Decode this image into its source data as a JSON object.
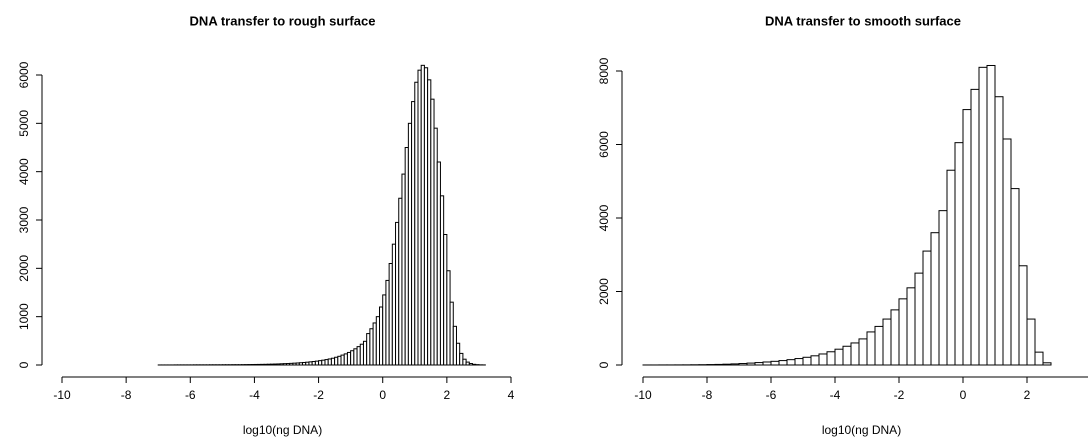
{
  "chart_data": [
    {
      "type": "histogram",
      "title": "DNA transfer to rough surface",
      "x_label": "log10(ng DNA)",
      "bins": [
        -7,
        -6.9,
        -6.8,
        -6.7,
        -6.6,
        -6.5,
        -6.4,
        -6.3,
        -6.2,
        -6.1,
        -6,
        -5.9,
        -5.8,
        -5.7,
        -5.6,
        -5.5,
        -5.4,
        -5.3,
        -5.2,
        -5.1,
        -5,
        -4.9,
        -4.8,
        -4.7,
        -4.6,
        -4.5,
        -4.4,
        -4.3,
        -4.2,
        -4.1,
        -4,
        -3.9,
        -3.8,
        -3.7,
        -3.6,
        -3.5,
        -3.4,
        -3.3,
        -3.2,
        -3.1,
        -3,
        -2.9,
        -2.8,
        -2.7,
        -2.6,
        -2.5,
        -2.4,
        -2.3,
        -2.2,
        -2.1,
        -2,
        -1.9,
        -1.8,
        -1.7,
        -1.6,
        -1.5,
        -1.4,
        -1.3,
        -1.2,
        -1.1,
        -1,
        -0.9,
        -0.8,
        -0.7,
        -0.6,
        -0.5,
        -0.4,
        -0.3,
        -0.2,
        -0.1,
        0,
        0.1,
        0.2,
        0.3,
        0.4,
        0.5,
        0.6,
        0.7,
        0.8,
        0.9,
        1,
        1.1,
        1.2,
        1.3,
        1.4,
        1.5,
        1.6,
        1.7,
        1.8,
        1.9,
        2,
        2.1,
        2.2,
        2.3,
        2.4,
        2.5,
        2.6,
        2.7,
        2.8,
        2.9,
        3,
        3.1,
        3.2
      ],
      "values": [
        1,
        1,
        1,
        1,
        1,
        2,
        2,
        2,
        2,
        2,
        2,
        3,
        3,
        3,
        3,
        3,
        4,
        4,
        4,
        4,
        5,
        5,
        5,
        6,
        6,
        6,
        7,
        8,
        9,
        10,
        11,
        12,
        13,
        14,
        16,
        18,
        20,
        22,
        25,
        28,
        30,
        34,
        38,
        42,
        47,
        52,
        58,
        65,
        72,
        80,
        90,
        100,
        112,
        125,
        140,
        160,
        180,
        205,
        230,
        260,
        295,
        335,
        380,
        430,
        490,
        650,
        750,
        870,
        1000,
        1200,
        1450,
        1750,
        2100,
        2500,
        2950,
        3450,
        3950,
        4500,
        5000,
        5450,
        5850,
        6100,
        6200,
        6150,
        5900,
        5500,
        4900,
        4200,
        3500,
        2700,
        1950,
        1300,
        800,
        450,
        240,
        120,
        60,
        30,
        14,
        7,
        3,
        2
      ],
      "xlim": [
        -10,
        4
      ],
      "xticks": [
        -10,
        -8,
        -6,
        -4,
        -2,
        0,
        2,
        4
      ],
      "ylim": [
        0,
        6000
      ],
      "yticks": [
        0,
        1000,
        2000,
        3000,
        4000,
        5000,
        6000
      ],
      "color": "#ffffff",
      "edgecolor": "#000000"
    },
    {
      "type": "histogram",
      "title": "DNA transfer to smooth surface",
      "x_label": "log10(ng DNA)",
      "bins": [
        -10,
        -9.75,
        -9.5,
        -9.25,
        -9,
        -8.75,
        -8.5,
        -8.25,
        -8,
        -7.75,
        -7.5,
        -7.25,
        -7,
        -6.75,
        -6.5,
        -6.25,
        -6,
        -5.75,
        -5.5,
        -5.25,
        -5,
        -4.75,
        -4.5,
        -4.25,
        -4,
        -3.75,
        -3.5,
        -3.25,
        -3,
        -2.75,
        -2.5,
        -2.25,
        -2,
        -1.75,
        -1.5,
        -1.25,
        -1,
        -0.75,
        -0.5,
        -0.25,
        0,
        0.25,
        0.5,
        0.75,
        1,
        1.25,
        1.5,
        1.75,
        2,
        2.25,
        2.5,
        2.75
      ],
      "values": [
        1,
        1,
        2,
        2,
        3,
        4,
        6,
        8,
        12,
        16,
        22,
        30,
        40,
        52,
        66,
        82,
        100,
        120,
        145,
        175,
        210,
        250,
        300,
        360,
        430,
        510,
        600,
        710,
        900,
        1050,
        1250,
        1500,
        1800,
        2100,
        2500,
        3100,
        3600,
        4200,
        5300,
        6050,
        6950,
        7500,
        8100,
        8150,
        7300,
        6150,
        4800,
        2700,
        1250,
        350,
        60
      ],
      "xlim": [
        -10,
        4
      ],
      "xticks": [
        -10,
        -8,
        -6,
        -4,
        -2,
        0,
        2
      ],
      "ylim": [
        0,
        8000
      ],
      "yticks": [
        0,
        2000,
        4000,
        6000,
        8000
      ],
      "color": "#ffffff",
      "edgecolor": "#000000"
    }
  ]
}
